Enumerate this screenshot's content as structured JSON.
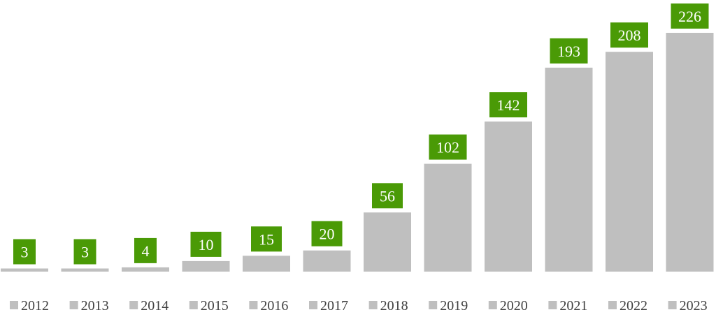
{
  "chart_data": {
    "type": "bar",
    "categories": [
      "2012",
      "2013",
      "2014",
      "2015",
      "2016",
      "2017",
      "2018",
      "2019",
      "2020",
      "2021",
      "2022",
      "2023"
    ],
    "values": [
      3,
      3,
      4,
      10,
      15,
      20,
      56,
      102,
      142,
      193,
      208,
      226
    ],
    "data_labels": [
      "3",
      "3",
      "4",
      "10",
      "15",
      "20",
      "56",
      "102",
      "142",
      "193",
      "208",
      "226"
    ],
    "legend_entries": [
      "2012",
      "2013",
      "2014",
      "2015",
      "2016",
      "2017",
      "2018",
      "2019",
      "2020",
      "2021",
      "2022",
      "2023"
    ],
    "legend_position": "bottom",
    "ylim": [
      0,
      226
    ],
    "grid": false,
    "colors": {
      "bar": "#bfbfbf",
      "label_bg": "#4a9a06",
      "label_text": "#ffffff",
      "legend_text": "#404040"
    }
  }
}
